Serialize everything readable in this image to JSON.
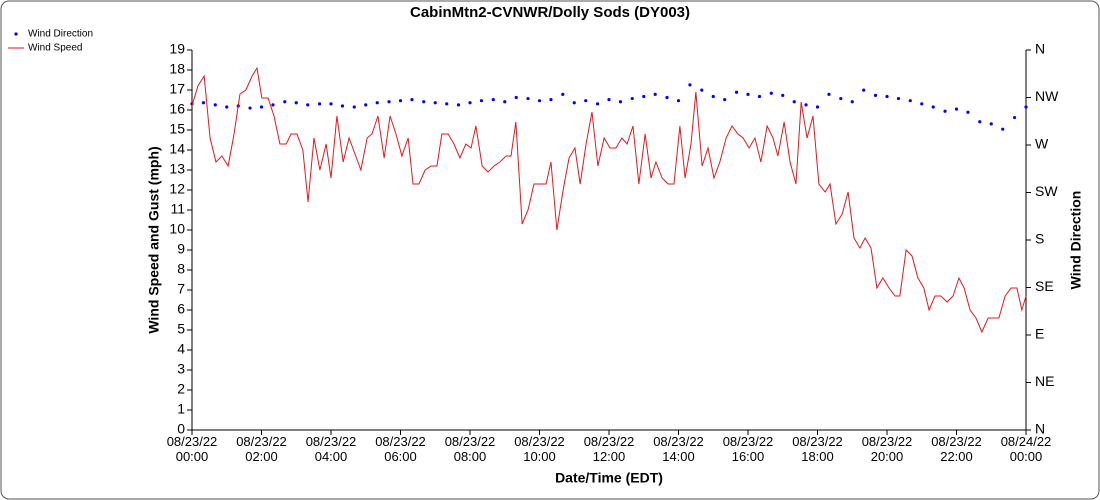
{
  "chart_data": {
    "type": "line",
    "title": "CabinMtn2-CVNWR/Dolly Sods (DY003)",
    "xlabel": "Date/Time (EDT)",
    "ylabel": "Wind Speed and Gust (mph)",
    "y2label": "Wind Direction",
    "xlim": [
      0,
      24
    ],
    "xticks": [
      {
        "value": 0,
        "label": "08/23/22\n00:00"
      },
      {
        "value": 2,
        "label": "08/23/22\n02:00"
      },
      {
        "value": 4,
        "label": "08/23/22\n04:00"
      },
      {
        "value": 6,
        "label": "08/23/22\n06:00"
      },
      {
        "value": 8,
        "label": "08/23/22\n08:00"
      },
      {
        "value": 10,
        "label": "08/23/22\n10:00"
      },
      {
        "value": 12,
        "label": "08/23/22\n12:00"
      },
      {
        "value": 14,
        "label": "08/23/22\n14:00"
      },
      {
        "value": 16,
        "label": "08/23/22\n16:00"
      },
      {
        "value": 18,
        "label": "08/23/22\n18:00"
      },
      {
        "value": 20,
        "label": "08/23/22\n20:00"
      },
      {
        "value": 22,
        "label": "08/23/22\n22:00"
      },
      {
        "value": 24,
        "label": "08/24/22\n00:00"
      }
    ],
    "ylim": [
      0,
      19
    ],
    "yticks": [
      0,
      1,
      2,
      3,
      4,
      5,
      6,
      7,
      8,
      9,
      10,
      11,
      12,
      13,
      14,
      15,
      16,
      17,
      18,
      19
    ],
    "y2lim": [
      0,
      360
    ],
    "y2ticks": [
      {
        "value": 0,
        "label": "N"
      },
      {
        "value": 45,
        "label": "NE"
      },
      {
        "value": 90,
        "label": "E"
      },
      {
        "value": 135,
        "label": "SE"
      },
      {
        "value": 180,
        "label": "S"
      },
      {
        "value": 225,
        "label": "SW"
      },
      {
        "value": 270,
        "label": "W"
      },
      {
        "value": 315,
        "label": "NW"
      },
      {
        "value": 360,
        "label": "N"
      }
    ],
    "series": [
      {
        "name": "Wind Direction",
        "color": "#0000ff",
        "style": "dots",
        "axis": "y2",
        "x": [
          0,
          0.33,
          0.67,
          1,
          1.33,
          1.67,
          2,
          2.33,
          2.67,
          3,
          3.33,
          3.67,
          4,
          4.33,
          4.67,
          5,
          5.33,
          5.67,
          6,
          6.33,
          6.67,
          7,
          7.33,
          7.67,
          8,
          8.33,
          8.67,
          9,
          9.33,
          9.67,
          10,
          10.33,
          10.67,
          11,
          11.33,
          11.67,
          12,
          12.33,
          12.67,
          13,
          13.33,
          13.67,
          14,
          14.33,
          14.67,
          15,
          15.33,
          15.67,
          16,
          16.33,
          16.67,
          17,
          17.33,
          17.67,
          18,
          18.33,
          18.67,
          19,
          19.33,
          19.67,
          20,
          20.33,
          20.67,
          21,
          21.33,
          21.67,
          22,
          22.33,
          22.67,
          23,
          23.33,
          23.67,
          24
        ],
        "values": [
          309,
          310,
          308,
          306,
          307,
          305,
          306,
          308,
          311,
          310,
          308,
          309,
          309,
          307,
          306,
          308,
          310,
          311,
          312,
          313,
          311,
          310,
          309,
          308,
          310,
          312,
          313,
          311,
          315,
          314,
          312,
          313,
          318,
          310,
          312,
          309,
          313,
          311,
          314,
          316,
          318,
          315,
          312,
          327,
          322,
          316,
          313,
          320,
          318,
          316,
          319,
          317,
          311,
          308,
          306,
          318,
          314,
          311,
          322,
          317,
          316,
          314,
          312,
          309,
          306,
          302,
          304,
          301,
          292,
          290,
          285,
          296,
          306
        ]
      },
      {
        "name": "Wind Speed",
        "color": "#e8161b",
        "style": "line",
        "x": [
          0,
          0.17,
          0.35,
          0.52,
          0.69,
          0.86,
          1.04,
          1.21,
          1.38,
          1.55,
          1.73,
          1.87,
          2.01,
          2.19,
          2.36,
          2.53,
          2.71,
          2.85,
          3.02,
          3.19,
          3.34,
          3.51,
          3.68,
          3.86,
          4,
          4.17,
          4.35,
          4.52,
          4.69,
          4.86,
          5.04,
          5.18,
          5.35,
          5.53,
          5.7,
          5.87,
          6.04,
          6.22,
          6.36,
          6.53,
          6.71,
          6.88,
          7.05,
          7.19,
          7.37,
          7.54,
          7.71,
          7.88,
          8.03,
          8.17,
          8.35,
          8.52,
          8.69,
          8.86,
          9.04,
          9.18,
          9.32,
          9.5,
          9.67,
          9.84,
          10.01,
          10.19,
          10.33,
          10.5,
          10.68,
          10.85,
          11.02,
          11.17,
          11.34,
          11.51,
          11.68,
          11.86,
          12.03,
          12.2,
          12.37,
          12.52,
          12.69,
          12.86,
          13.04,
          13.21,
          13.35,
          13.53,
          13.7,
          13.87,
          14.04,
          14.19,
          14.36,
          14.5,
          14.68,
          14.85,
          15.02,
          15.19,
          15.37,
          15.54,
          15.71,
          15.86,
          16.03,
          16.2,
          16.37,
          16.55,
          16.72,
          16.86,
          17.04,
          17.21,
          17.38,
          17.53,
          17.7,
          17.87,
          18.04,
          18.22,
          18.36,
          18.53,
          18.71,
          18.88,
          19.05,
          19.22,
          19.37,
          19.54,
          19.71,
          19.88,
          20.06,
          20.23,
          20.37,
          20.55,
          20.72,
          20.89,
          21.06,
          21.21,
          21.38,
          21.55,
          21.73,
          21.9,
          22.07,
          22.22,
          22.39,
          22.56,
          22.73,
          22.91,
          23.08,
          23.22,
          23.4,
          23.57,
          23.74,
          23.88,
          24
        ],
        "values": [
          16.2,
          17.2,
          17.7,
          14.6,
          13.4,
          13.7,
          13.2,
          14.8,
          16.8,
          17.0,
          17.7,
          18.1,
          16.6,
          16.6,
          15.7,
          14.3,
          14.3,
          14.8,
          14.8,
          14.0,
          11.4,
          14.6,
          13.0,
          14.3,
          12.6,
          15.7,
          13.4,
          14.6,
          13.8,
          13.0,
          14.6,
          14.8,
          15.7,
          13.6,
          15.7,
          14.8,
          13.7,
          14.6,
          12.3,
          12.3,
          13.0,
          13.2,
          13.2,
          14.8,
          14.8,
          14.3,
          13.6,
          14.3,
          14.1,
          15.2,
          13.2,
          12.9,
          13.2,
          13.4,
          13.7,
          13.7,
          15.4,
          10.3,
          11.0,
          12.3,
          12.3,
          12.3,
          13.4,
          10.0,
          12.0,
          13.6,
          14.1,
          12.3,
          14.3,
          15.9,
          13.2,
          14.6,
          14.1,
          14.1,
          14.6,
          14.3,
          15.2,
          12.3,
          14.8,
          12.6,
          13.4,
          12.6,
          12.3,
          12.3,
          15.2,
          12.6,
          14.3,
          16.9,
          13.2,
          14.1,
          12.6,
          13.4,
          14.6,
          15.2,
          14.8,
          14.6,
          14.1,
          14.6,
          13.4,
          15.2,
          14.6,
          13.7,
          15.4,
          13.4,
          12.3,
          16.4,
          14.6,
          15.7,
          12.3,
          11.9,
          12.3,
          10.3,
          10.8,
          11.9,
          9.6,
          9.1,
          9.6,
          9.1,
          7.1,
          7.6,
          7.1,
          6.7,
          6.7,
          9.0,
          8.7,
          7.6,
          7.1,
          6.0,
          6.7,
          6.7,
          6.4,
          6.7,
          7.6,
          7.1,
          6.0,
          5.6,
          4.9,
          5.6,
          5.6,
          5.6,
          6.7,
          7.1,
          7.1,
          6.0,
          6.7
        ]
      }
    ]
  }
}
